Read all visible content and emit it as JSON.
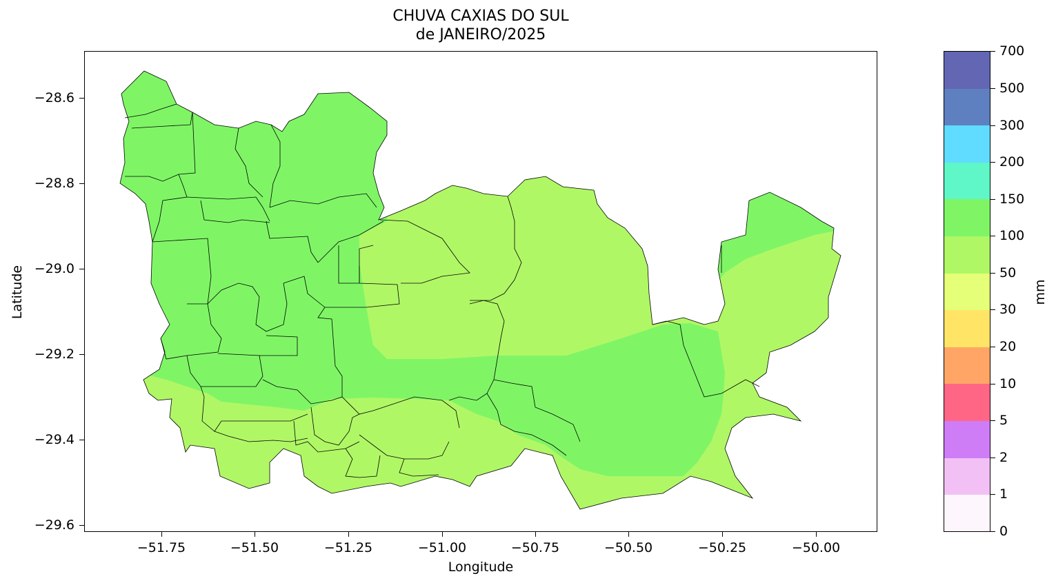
{
  "title_line1": "CHUVA CAXIAS DO SUL",
  "title_line2": "de JANEIRO/2025",
  "xlabel": "Longitude",
  "ylabel": "Latitude",
  "xticks": [
    "−51.75",
    "−51.50",
    "−51.25",
    "−51.00",
    "−50.75",
    "−50.50",
    "−50.25",
    "−50.00"
  ],
  "yticks": [
    "−28.6",
    "−28.8",
    "−29.0",
    "−29.2",
    "−29.4",
    "−29.6"
  ],
  "colorbar": {
    "unit": "mm",
    "labels": [
      "0",
      "1",
      "2",
      "5",
      "10",
      "20",
      "30",
      "50",
      "100",
      "150",
      "200",
      "300",
      "500",
      "700"
    ],
    "colors": [
      "#fdf7fd",
      "#f2c0f4",
      "#cf7cf7",
      "#ff6686",
      "#ffa566",
      "#ffe466",
      "#e6ff78",
      "#b0f766",
      "#7ff566",
      "#5ff7c7",
      "#5fdcff",
      "#5f80c0",
      "#6366b3"
    ]
  },
  "legend_categories": {
    "50-100": "#b0f766",
    "100-150": "#7ff566"
  }
}
